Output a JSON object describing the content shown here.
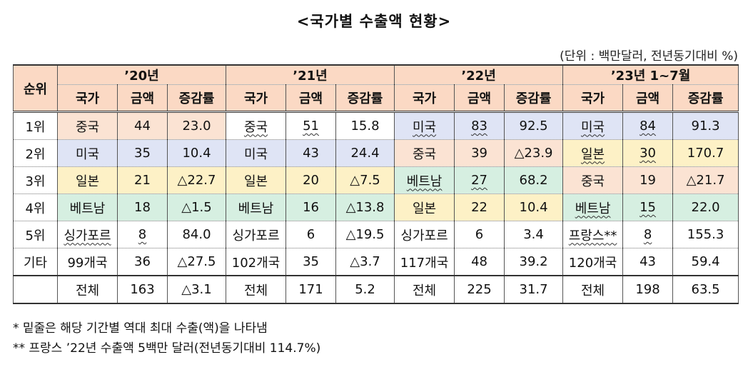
{
  "title": "<국가별 수출액 현황>",
  "unit_note": "(단위 : 백만달러, 전년동기대비 %)",
  "header": {
    "rank": "순위",
    "periods": [
      "’20년",
      "’21년",
      "’22년",
      "’23년 1~7월"
    ],
    "sub": [
      "국가",
      "금액",
      "증감률"
    ]
  },
  "rows": [
    {
      "rank": "1위",
      "cells": [
        {
          "country": "중국",
          "amount": "44",
          "growth": "23.0",
          "color": "cn",
          "ul": false
        },
        {
          "country": "중국",
          "amount": "51",
          "growth": "15.8",
          "color": "none",
          "ul": true
        },
        {
          "country": "미국",
          "amount": "83",
          "growth": "92.5",
          "color": "us",
          "ul": true
        },
        {
          "country": "미국",
          "amount": "84",
          "growth": "91.3",
          "color": "us",
          "ul": true
        }
      ]
    },
    {
      "rank": "2위",
      "cells": [
        {
          "country": "미국",
          "amount": "35",
          "growth": "10.4",
          "color": "us",
          "ul": false
        },
        {
          "country": "미국",
          "amount": "43",
          "growth": "24.4",
          "color": "us",
          "ul": false
        },
        {
          "country": "중국",
          "amount": "39",
          "growth": "△23.9",
          "color": "cn",
          "ul": false
        },
        {
          "country": "일본",
          "amount": "30",
          "growth": "170.7",
          "color": "jp",
          "ul": true
        }
      ]
    },
    {
      "rank": "3위",
      "cells": [
        {
          "country": "일본",
          "amount": "21",
          "growth": "△22.7",
          "color": "jp",
          "ul": false
        },
        {
          "country": "일본",
          "amount": "20",
          "growth": "△7.5",
          "color": "jp",
          "ul": false
        },
        {
          "country": "베트남",
          "amount": "27",
          "growth": "68.2",
          "color": "vn",
          "ul": true
        },
        {
          "country": "중국",
          "amount": "19",
          "growth": "△21.7",
          "color": "cn",
          "ul": false
        }
      ]
    },
    {
      "rank": "4위",
      "cells": [
        {
          "country": "베트남",
          "amount": "18",
          "growth": "△1.5",
          "color": "vn",
          "ul": false
        },
        {
          "country": "베트남",
          "amount": "16",
          "growth": "△13.8",
          "color": "vn",
          "ul": false
        },
        {
          "country": "일본",
          "amount": "22",
          "growth": "10.4",
          "color": "jp",
          "ul": false
        },
        {
          "country": "베트남",
          "amount": "15",
          "growth": "22.0",
          "color": "vn",
          "ul": true
        }
      ]
    },
    {
      "rank": "5위",
      "cells": [
        {
          "country": "싱가포르",
          "amount": "8",
          "growth": "84.0",
          "color": "none",
          "ul": true
        },
        {
          "country": "싱가포르",
          "amount": "6",
          "growth": "△19.5",
          "color": "none",
          "ul": false
        },
        {
          "country": "싱가포르",
          "amount": "6",
          "growth": "3.4",
          "color": "none",
          "ul": false
        },
        {
          "country": "프랑스**",
          "amount": "8",
          "growth": "155.3",
          "color": "none",
          "ul": true
        }
      ]
    },
    {
      "rank": "기타",
      "cells": [
        {
          "country": "99개국",
          "amount": "36",
          "growth": "△27.5",
          "color": "none",
          "ul": false
        },
        {
          "country": "102개국",
          "amount": "35",
          "growth": "△3.7",
          "color": "none",
          "ul": false
        },
        {
          "country": "117개국",
          "amount": "48",
          "growth": "39.2",
          "color": "none",
          "ul": false
        },
        {
          "country": "120개국",
          "amount": "43",
          "growth": "59.4",
          "color": "none",
          "ul": false
        }
      ]
    }
  ],
  "total": {
    "rank": "",
    "cells": [
      {
        "country": "전체",
        "amount": "163",
        "growth": "△3.1"
      },
      {
        "country": "전체",
        "amount": "171",
        "growth": "5.2"
      },
      {
        "country": "전체",
        "amount": "225",
        "growth": "31.7"
      },
      {
        "country": "전체",
        "amount": "198",
        "growth": "63.5"
      }
    ]
  },
  "notes": [
    "* 밑줄은 해당 기간별 역대 최대 수출(액)을 나타냄",
    "** 프랑스 ’22년 수출액 5백만 달러(전년동기대비 114.7%)"
  ],
  "colors": {
    "header": "#fbd9c4",
    "cn": "#fbe3d3",
    "us": "#dfe4f5",
    "jp": "#fdf1c6",
    "vn": "#d6efe1"
  }
}
